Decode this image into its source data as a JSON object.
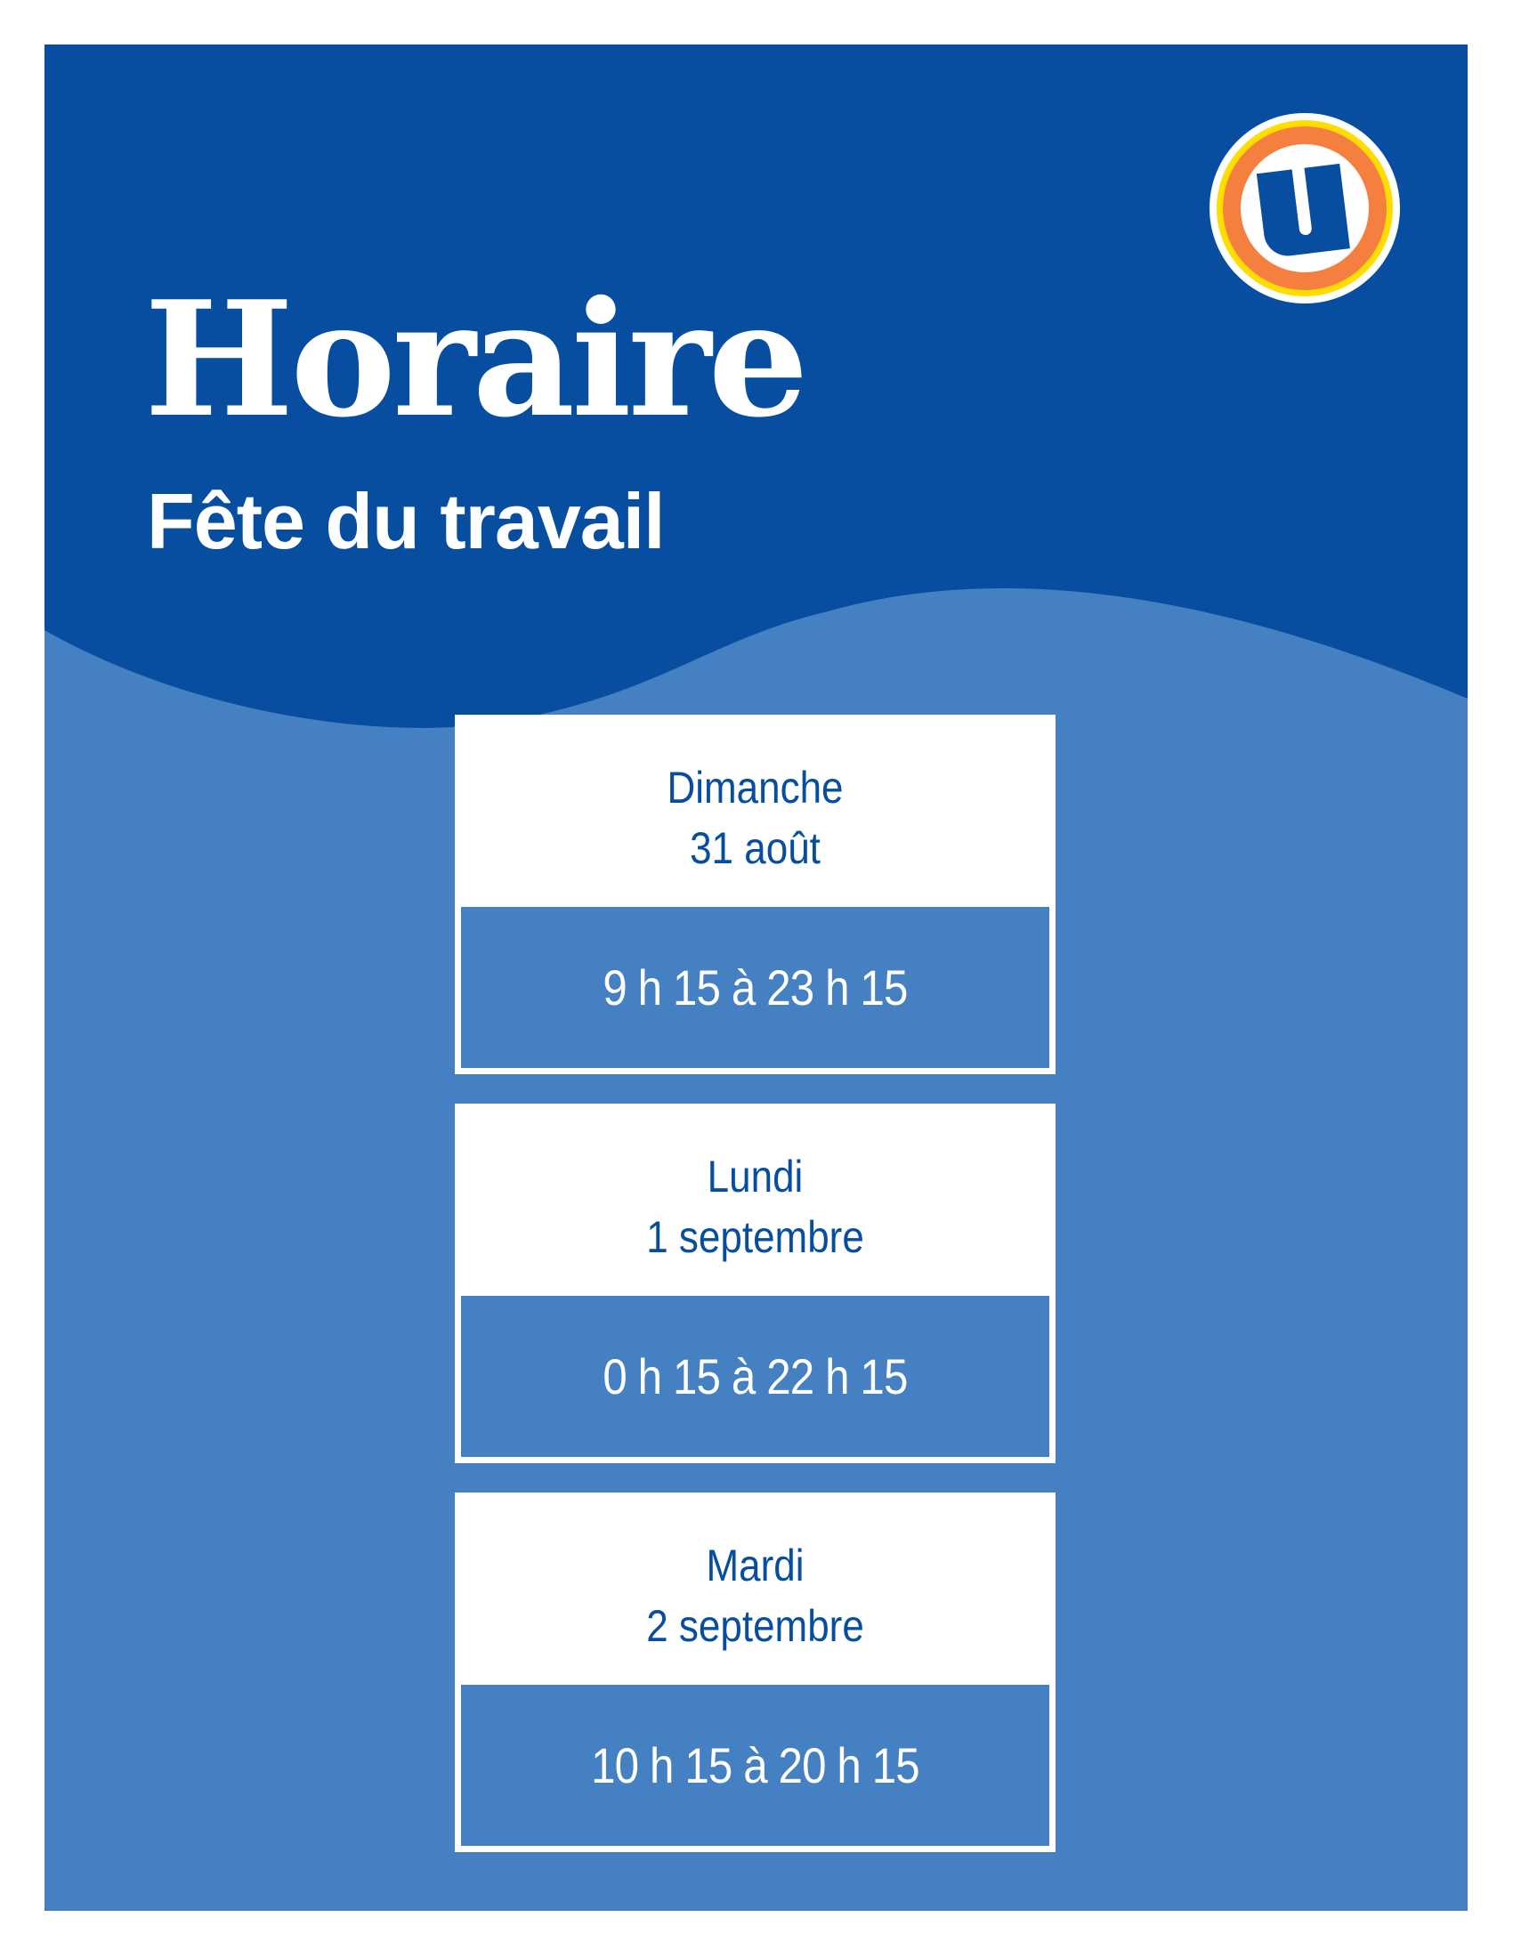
{
  "header": {
    "title": "Horaire",
    "subtitle": "Fête du travail",
    "logo_letter": "U"
  },
  "colors": {
    "dark_blue": "#074ea0",
    "light_blue": "#4580c2",
    "logo_orange": "#f47f3e",
    "logo_yellow": "#ffdd00",
    "white": "#ffffff"
  },
  "schedule": [
    {
      "day": "Dimanche",
      "date": "31 août",
      "hours": "9 h 15 à 23 h 15"
    },
    {
      "day": "Lundi",
      "date": "1 septembre",
      "hours": "0 h 15 à 22 h 15"
    },
    {
      "day": "Mardi",
      "date": "2 septembre",
      "hours": "10 h 15 à 20 h 15"
    }
  ]
}
